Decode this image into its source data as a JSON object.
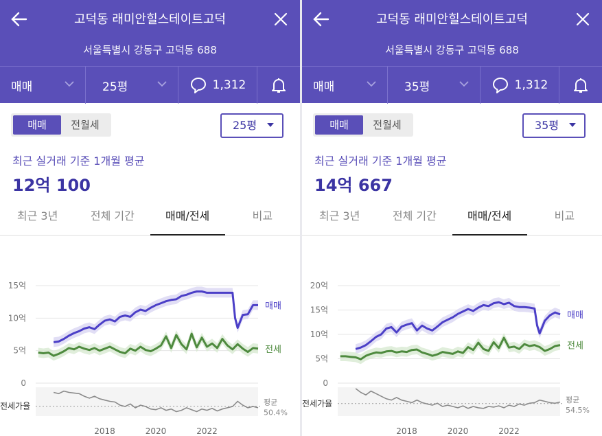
{
  "panels": [
    {
      "header": {
        "title": "고덕동 래미안힐스테이트고덕",
        "address": "서울특별시 강동구 고덕동 688"
      },
      "bar": {
        "deal_type": "매매",
        "size": "25평",
        "comments": "1,312"
      },
      "segment": [
        "매매",
        "전월세"
      ],
      "size_dropdown": "25평",
      "summary_label": "최근 실거래 기준 1개월 평균",
      "summary_price": "12억 100",
      "tabs": [
        "최근 3년",
        "전체 기간",
        "매매/전세",
        "비교"
      ],
      "active_tab": 2,
      "chart_data": {
        "type": "line",
        "ylabels": [
          "0",
          "5억",
          "10억",
          "15억"
        ],
        "yticks": [
          0,
          5,
          10,
          15
        ],
        "ylim": [
          0,
          15
        ],
        "xlabels": [
          "2018",
          "2020",
          "2022"
        ],
        "xticks": [
          2018,
          2020,
          2022
        ],
        "xlim": [
          2015.3,
          2024.0
        ],
        "series": [
          {
            "name": "매매",
            "color": "#4b3fc7",
            "x": [
              2016.0,
              2016.2,
              2016.4,
              2016.6,
              2016.8,
              2017.0,
              2017.2,
              2017.4,
              2017.6,
              2017.8,
              2018.0,
              2018.2,
              2018.4,
              2018.6,
              2018.8,
              2019.0,
              2019.2,
              2019.4,
              2019.6,
              2019.8,
              2020.0,
              2020.2,
              2020.4,
              2020.6,
              2020.8,
              2021.0,
              2021.2,
              2021.4,
              2021.6,
              2021.8,
              2022.0,
              2022.2,
              2022.4,
              2022.6,
              2022.8,
              2023.0,
              2023.1,
              2023.2,
              2023.4,
              2023.6,
              2023.8,
              2024.0
            ],
            "y": [
              6.3,
              6.4,
              6.8,
              7.3,
              7.7,
              8.0,
              8.4,
              8.6,
              8.3,
              9.0,
              9.6,
              9.8,
              9.5,
              10.2,
              10.4,
              10.2,
              10.9,
              11.3,
              11.1,
              11.6,
              12.0,
              12.3,
              12.6,
              12.8,
              12.9,
              13.4,
              13.6,
              13.9,
              14.1,
              14.1,
              13.9,
              13.9,
              13.9,
              13.9,
              13.9,
              13.9,
              10.0,
              8.5,
              10.5,
              10.6,
              12.0,
              12.0
            ]
          },
          {
            "name": "전세",
            "color": "#4e8a3e",
            "x": [
              2015.4,
              2015.6,
              2015.8,
              2016.0,
              2016.2,
              2016.4,
              2016.6,
              2016.8,
              2017.0,
              2017.2,
              2017.4,
              2017.6,
              2017.8,
              2018.0,
              2018.2,
              2018.4,
              2018.6,
              2018.8,
              2019.0,
              2019.2,
              2019.4,
              2019.6,
              2019.8,
              2020.0,
              2020.2,
              2020.4,
              2020.6,
              2020.8,
              2021.0,
              2021.2,
              2021.4,
              2021.6,
              2021.8,
              2022.0,
              2022.2,
              2022.4,
              2022.6,
              2022.8,
              2023.0,
              2023.2,
              2023.4,
              2023.6,
              2023.8,
              2024.0
            ],
            "y": [
              4.7,
              4.6,
              4.7,
              4.2,
              4.5,
              4.9,
              5.4,
              5.2,
              5.6,
              5.3,
              5.1,
              5.4,
              5.0,
              5.3,
              5.6,
              5.2,
              4.8,
              4.6,
              5.3,
              5.0,
              5.6,
              5.1,
              4.9,
              5.3,
              5.8,
              7.2,
              5.4,
              7.4,
              6.0,
              5.2,
              7.6,
              5.5,
              7.0,
              5.6,
              6.1,
              5.4,
              6.8,
              5.8,
              5.2,
              6.0,
              5.3,
              4.8,
              5.4,
              5.3
            ]
          }
        ],
        "ratio_label": "전세가율",
        "ratio_avg_label": "평균",
        "ratio_avg": "50.4%",
        "ratio_x": [
          2016.0,
          2016.2,
          2016.4,
          2016.6,
          2016.8,
          2017.0,
          2017.2,
          2017.4,
          2017.6,
          2017.8,
          2018.0,
          2018.2,
          2018.4,
          2018.6,
          2018.8,
          2019.0,
          2019.2,
          2019.4,
          2019.6,
          2019.8,
          2020.0,
          2020.2,
          2020.4,
          2020.6,
          2020.8,
          2021.0,
          2021.2,
          2021.4,
          2021.6,
          2021.8,
          2022.0,
          2022.2,
          2022.4,
          2022.6,
          2022.8,
          2023.0,
          2023.2,
          2023.4,
          2023.6,
          2023.8,
          2024.0
        ],
        "ratio_y": [
          72,
          70,
          74,
          72,
          71,
          70,
          66,
          63,
          66,
          62,
          60,
          58,
          57,
          52,
          50,
          54,
          48,
          52,
          50,
          46,
          45,
          48,
          44,
          46,
          42,
          44,
          48,
          45,
          42,
          46,
          44,
          47,
          43,
          46,
          48,
          50,
          58,
          52,
          48,
          50,
          48
        ],
        "ratio_ylim": [
          35,
          80
        ],
        "ratio_avg_value": 50.4
      }
    },
    {
      "header": {
        "title": "고덕동 래미안힐스테이트고덕",
        "address": "서울특별시 강동구 고덕동 688"
      },
      "bar": {
        "deal_type": "매매",
        "size": "35평",
        "comments": "1,312"
      },
      "segment": [
        "매매",
        "전월세"
      ],
      "size_dropdown": "35평",
      "summary_label": "최근 실거래 기준 1개월 평균",
      "summary_price": "14억 667",
      "tabs": [
        "최근 3년",
        "전체 기간",
        "매매/전세",
        "비교"
      ],
      "active_tab": 2,
      "chart_data": {
        "type": "line",
        "ylabels": [
          "0",
          "5억",
          "10억",
          "15억",
          "20억"
        ],
        "yticks": [
          0,
          5,
          10,
          15,
          20
        ],
        "ylim": [
          0,
          20
        ],
        "xlabels": [
          "2018",
          "2020",
          "2022"
        ],
        "xticks": [
          2018,
          2020,
          2022
        ],
        "xlim": [
          2015.3,
          2024.0
        ],
        "series": [
          {
            "name": "매매",
            "color": "#4b3fc7",
            "x": [
              2016.0,
              2016.2,
              2016.4,
              2016.6,
              2016.8,
              2017.0,
              2017.2,
              2017.4,
              2017.6,
              2017.8,
              2018.0,
              2018.2,
              2018.4,
              2018.6,
              2018.8,
              2019.0,
              2019.2,
              2019.4,
              2019.6,
              2019.8,
              2020.0,
              2020.2,
              2020.4,
              2020.6,
              2020.8,
              2021.0,
              2021.2,
              2021.4,
              2021.6,
              2021.8,
              2022.0,
              2022.2,
              2022.4,
              2022.6,
              2022.8,
              2023.0,
              2023.1,
              2023.2,
              2023.4,
              2023.6,
              2023.8,
              2024.0
            ],
            "y": [
              7.0,
              7.3,
              7.8,
              8.6,
              9.5,
              10.0,
              11.2,
              11.5,
              10.4,
              11.6,
              12.0,
              12.3,
              10.8,
              11.8,
              11.2,
              10.8,
              11.6,
              12.5,
              13.0,
              13.5,
              14.2,
              14.7,
              15.2,
              14.8,
              15.5,
              16.0,
              15.8,
              16.4,
              16.6,
              16.2,
              16.5,
              15.8,
              15.6,
              15.6,
              15.5,
              15.3,
              11.8,
              10.2,
              12.8,
              13.9,
              14.5,
              14.1
            ]
          },
          {
            "name": "전세",
            "color": "#4e8a3e",
            "x": [
              2015.4,
              2015.6,
              2015.8,
              2016.0,
              2016.2,
              2016.4,
              2016.6,
              2016.8,
              2017.0,
              2017.2,
              2017.4,
              2017.6,
              2017.8,
              2018.0,
              2018.2,
              2018.4,
              2018.6,
              2018.8,
              2019.0,
              2019.2,
              2019.4,
              2019.6,
              2019.8,
              2020.0,
              2020.2,
              2020.4,
              2020.6,
              2020.8,
              2021.0,
              2021.2,
              2021.4,
              2021.6,
              2021.8,
              2022.0,
              2022.2,
              2022.4,
              2022.6,
              2022.8,
              2023.0,
              2023.2,
              2023.4,
              2023.6,
              2023.8,
              2024.0
            ],
            "y": [
              5.5,
              5.5,
              5.4,
              5.3,
              4.9,
              5.6,
              6.0,
              6.3,
              6.2,
              6.5,
              6.6,
              6.3,
              6.5,
              6.4,
              6.8,
              6.9,
              6.3,
              6.0,
              5.6,
              5.9,
              6.4,
              6.2,
              6.0,
              6.5,
              6.2,
              7.4,
              6.8,
              8.3,
              7.0,
              6.6,
              8.4,
              7.2,
              9.3,
              7.3,
              7.5,
              7.0,
              8.0,
              7.6,
              7.8,
              7.4,
              6.6,
              7.0,
              7.6,
              7.8
            ]
          }
        ],
        "ratio_label": "전세가율",
        "ratio_avg_label": "평균",
        "ratio_avg": "54.5%",
        "ratio_x": [
          2016.0,
          2016.2,
          2016.4,
          2016.6,
          2016.8,
          2017.0,
          2017.2,
          2017.4,
          2017.6,
          2017.8,
          2018.0,
          2018.2,
          2018.4,
          2018.6,
          2018.8,
          2019.0,
          2019.2,
          2019.4,
          2019.6,
          2019.8,
          2020.0,
          2020.2,
          2020.4,
          2020.6,
          2020.8,
          2021.0,
          2021.2,
          2021.4,
          2021.6,
          2021.8,
          2022.0,
          2022.2,
          2022.4,
          2022.6,
          2022.8,
          2023.0,
          2023.2,
          2023.4,
          2023.6,
          2023.8,
          2024.0
        ],
        "ratio_y": [
          78,
          72,
          68,
          74,
          70,
          66,
          62,
          60,
          64,
          60,
          58,
          56,
          60,
          56,
          54,
          52,
          55,
          50,
          52,
          50,
          48,
          51,
          47,
          50,
          48,
          47,
          50,
          49,
          51,
          48,
          52,
          50,
          54,
          52,
          55,
          56,
          60,
          58,
          56,
          55,
          57
        ],
        "ratio_ylim": [
          35,
          80
        ],
        "ratio_avg_value": 54.5
      }
    }
  ]
}
